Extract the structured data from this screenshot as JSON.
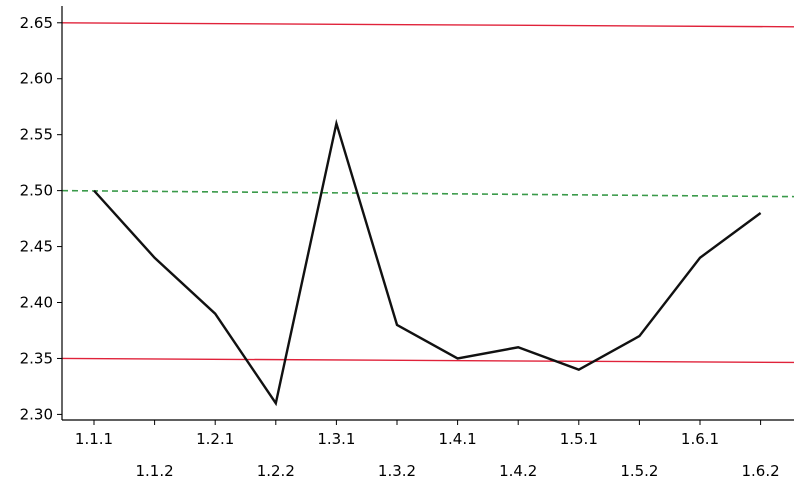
{
  "chart_data": {
    "type": "line",
    "title": "",
    "xlabel": "",
    "ylabel": "",
    "categories": [
      "1.1.1",
      "1.1.2",
      "1.2.1",
      "1.2.2",
      "1.3.1",
      "1.3.2",
      "1.4.1",
      "1.4.2",
      "1.5.1",
      "1.5.2",
      "1.6.1",
      "1.6.2"
    ],
    "series": [
      {
        "values": [
          2.5,
          2.44,
          2.39,
          2.31,
          2.56,
          2.38,
          2.35,
          2.36,
          2.34,
          2.37,
          2.44,
          2.48
        ],
        "color": "#111111"
      }
    ],
    "reference_lines": [
      {
        "value": 2.65,
        "color": "#e0223a",
        "style": "solid"
      },
      {
        "value": 2.35,
        "color": "#e0223a",
        "style": "solid"
      },
      {
        "value": 2.5,
        "color": "#3a9a4a",
        "style": "dashed"
      }
    ],
    "y_ticks": [
      "2.30",
      "2.35",
      "2.40",
      "2.45",
      "2.50",
      "2.55",
      "2.60",
      "2.65"
    ],
    "ylim": [
      2.295,
      2.665
    ],
    "grid": false,
    "legend": "none"
  }
}
